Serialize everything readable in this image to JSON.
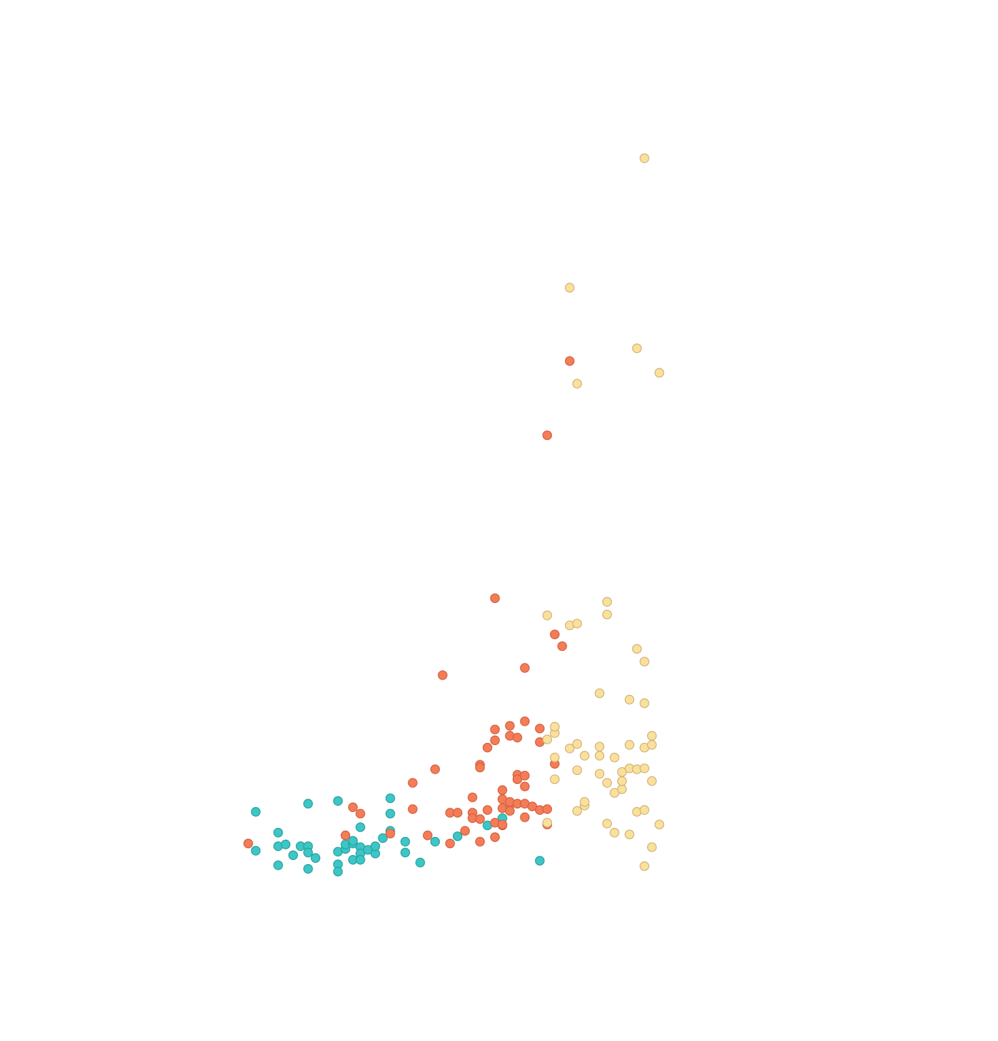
{
  "chart_data": {
    "type": "scatter",
    "title": "",
    "xlabel": "",
    "ylabel": "",
    "xlim": [
      0,
      100
    ],
    "ylim": [
      0,
      100
    ],
    "grid": false,
    "axes_visible": false,
    "legend": "none",
    "series": [
      {
        "color": "#3cc6c6",
        "stroke": "#2a9e9e",
        "points": [
          [
            2,
            6.7
          ],
          [
            2,
            2.4
          ],
          [
            5,
            2.9
          ],
          [
            5,
            0.8
          ],
          [
            5,
            4.4
          ],
          [
            6,
            3.1
          ],
          [
            7,
            1.9
          ],
          [
            8,
            2.9
          ],
          [
            9,
            7.6
          ],
          [
            9,
            0.4
          ],
          [
            9,
            2.9
          ],
          [
            9,
            2.2
          ],
          [
            10,
            1.6
          ],
          [
            13,
            7.9
          ],
          [
            13,
            2.3
          ],
          [
            13,
            0.9
          ],
          [
            13,
            0.1
          ],
          [
            14,
            2.6
          ],
          [
            14,
            3.1
          ],
          [
            15,
            3.2
          ],
          [
            15,
            3.5
          ],
          [
            15,
            1.4
          ],
          [
            16,
            2.8
          ],
          [
            16,
            2.1
          ],
          [
            16,
            1.4
          ],
          [
            16,
            5
          ],
          [
            17,
            2.5
          ],
          [
            18,
            2.1
          ],
          [
            18,
            2.9
          ],
          [
            19,
            3.8
          ],
          [
            20,
            8.2
          ],
          [
            20,
            6.5
          ],
          [
            20,
            4.6
          ],
          [
            22,
            3.4
          ],
          [
            22,
            2.2
          ],
          [
            24,
            1.1
          ],
          [
            26,
            3.4
          ],
          [
            29,
            4
          ],
          [
            33,
            5.2
          ],
          [
            35,
            6
          ],
          [
            40,
            1.3
          ]
        ]
      },
      {
        "color": "#f47c56",
        "stroke": "#d0603e",
        "points": [
          [
            1,
            3.2
          ],
          [
            14,
            4.1
          ],
          [
            15,
            7.2
          ],
          [
            16,
            6.5
          ],
          [
            20,
            4.3
          ],
          [
            23,
            9.9
          ],
          [
            23,
            7
          ],
          [
            25,
            4.1
          ],
          [
            26,
            11.4
          ],
          [
            27,
            21.8
          ],
          [
            28,
            6.6
          ],
          [
            28,
            3.2
          ],
          [
            29,
            6.6
          ],
          [
            30,
            4.6
          ],
          [
            31,
            8.3
          ],
          [
            31,
            6.6
          ],
          [
            31,
            6
          ],
          [
            32,
            11.9
          ],
          [
            32,
            11.6
          ],
          [
            32,
            3.4
          ],
          [
            32,
            5.9
          ],
          [
            33,
            13.8
          ],
          [
            33,
            6.9
          ],
          [
            34,
            14.6
          ],
          [
            34,
            15.8
          ],
          [
            34,
            30.3
          ],
          [
            34,
            3.9
          ],
          [
            34,
            5.5
          ],
          [
            35,
            5.2
          ],
          [
            35,
            9.1
          ],
          [
            35,
            8.1
          ],
          [
            35,
            7.1
          ],
          [
            35,
            5.3
          ],
          [
            36,
            15.1
          ],
          [
            36,
            16.2
          ],
          [
            36,
            7.5
          ],
          [
            36,
            6.8
          ],
          [
            36,
            7.8
          ],
          [
            37,
            14.9
          ],
          [
            37,
            7.6
          ],
          [
            37,
            10.8
          ],
          [
            37,
            10.3
          ],
          [
            38,
            22.6
          ],
          [
            38,
            9.5
          ],
          [
            38,
            7.6
          ],
          [
            38,
            10.7
          ],
          [
            38,
            16.7
          ],
          [
            38,
            6.1
          ],
          [
            39,
            7.3
          ],
          [
            40,
            6.9
          ],
          [
            40,
            14.4
          ],
          [
            40,
            15.9
          ],
          [
            41,
            5.3
          ],
          [
            41,
            7
          ],
          [
            41,
            48.3
          ],
          [
            42,
            26.3
          ],
          [
            44,
            56.5
          ],
          [
            42,
            12
          ],
          [
            43,
            25
          ]
        ]
      },
      {
        "color": "#fbe09c",
        "stroke": "#cdb178",
        "points": [
          [
            41,
            5.5
          ],
          [
            41,
            14.7
          ],
          [
            41,
            28.4
          ],
          [
            42,
            10.3
          ],
          [
            42,
            12.7
          ],
          [
            42,
            15.4
          ],
          [
            42,
            16.1
          ],
          [
            44,
            13.7
          ],
          [
            44,
            27.3
          ],
          [
            44,
            64.6
          ],
          [
            45,
            6.8
          ],
          [
            45,
            11.3
          ],
          [
            45,
            14.2
          ],
          [
            45,
            27.5
          ],
          [
            45,
            54
          ],
          [
            46,
            7.4
          ],
          [
            46,
            7.8
          ],
          [
            46,
            12.9
          ],
          [
            48,
            10.9
          ],
          [
            48,
            12.9
          ],
          [
            48,
            13.9
          ],
          [
            48,
            19.8
          ],
          [
            49,
            5.4
          ],
          [
            49,
            9.9
          ],
          [
            49,
            28.5
          ],
          [
            49,
            29.9
          ],
          [
            50,
            4.4
          ],
          [
            50,
            8.8
          ],
          [
            50,
            12.7
          ],
          [
            51,
            9.2
          ],
          [
            51,
            11.1
          ],
          [
            51,
            10.1
          ],
          [
            52,
            4.2
          ],
          [
            52,
            11.5
          ],
          [
            52,
            14.1
          ],
          [
            52,
            19.1
          ],
          [
            53,
            11.4
          ],
          [
            53,
            6.7
          ],
          [
            53,
            24.7
          ],
          [
            53,
            57.9
          ],
          [
            54,
            6.9
          ],
          [
            54,
            11.5
          ],
          [
            54,
            13.8
          ],
          [
            54,
            18.7
          ],
          [
            54,
            0.7
          ],
          [
            54,
            23.3
          ],
          [
            54,
            78.9
          ],
          [
            55,
            10.1
          ],
          [
            55,
            14.1
          ],
          [
            55,
            2.8
          ],
          [
            55,
            15.1
          ],
          [
            56,
            5.3
          ],
          [
            56,
            55.2
          ]
        ]
      }
    ]
  }
}
